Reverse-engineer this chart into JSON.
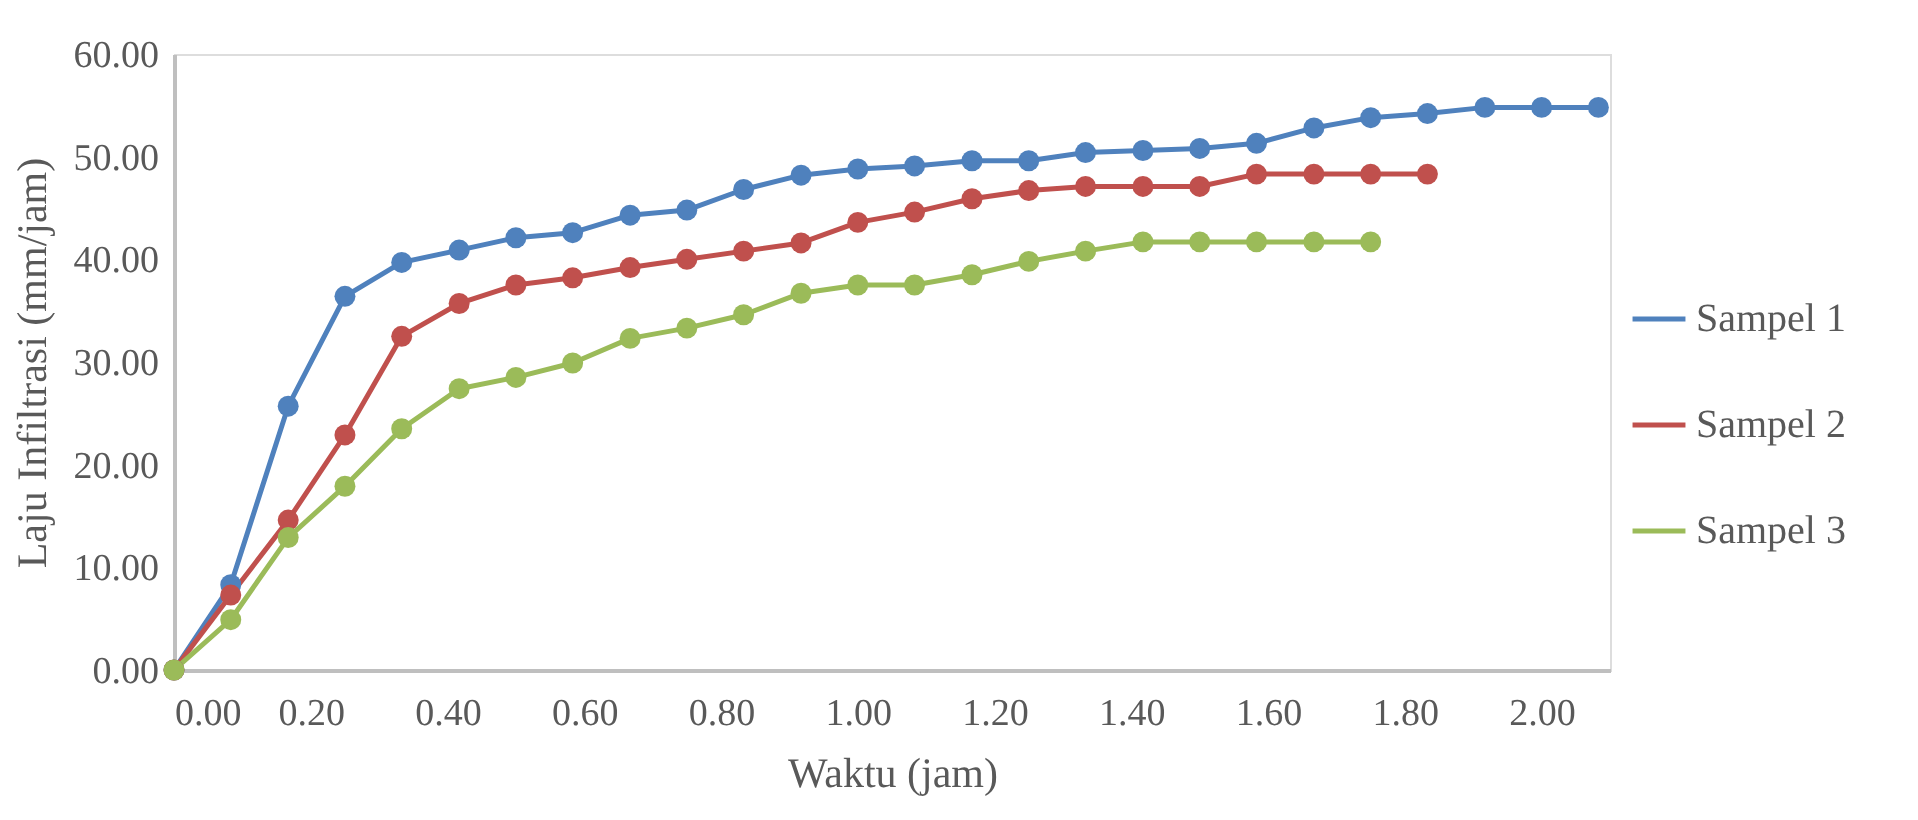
{
  "chart_data": {
    "type": "line",
    "xlabel": "Waktu (jam)",
    "ylabel": "Laju Infiltrasi (mm/jam)",
    "x": [
      0,
      0.083,
      0.167,
      0.25,
      0.333,
      0.417,
      0.5,
      0.583,
      0.667,
      0.75,
      0.833,
      0.917,
      1.0,
      1.083,
      1.167,
      1.25,
      1.333,
      1.417,
      1.5,
      1.583,
      1.667,
      1.75,
      1.833,
      1.917,
      2.0,
      2.083
    ],
    "series": [
      {
        "name": "Sampel 1",
        "color": "#4f81bd",
        "values": [
          0,
          8.3,
          25.7,
          36.4,
          39.7,
          40.9,
          42.1,
          42.6,
          44.3,
          44.8,
          46.8,
          48.2,
          48.8,
          49.1,
          49.6,
          49.6,
          50.4,
          50.6,
          50.8,
          51.3,
          52.8,
          53.8,
          54.2,
          54.8,
          54.8,
          54.8
        ]
      },
      {
        "name": "Sampel 2",
        "color": "#c0504d",
        "values": [
          0,
          7.3,
          14.6,
          22.9,
          32.5,
          35.7,
          37.5,
          38.2,
          39.2,
          40.0,
          40.8,
          41.6,
          43.6,
          44.6,
          45.9,
          46.7,
          47.1,
          47.1,
          47.1,
          48.3,
          48.3,
          48.3,
          48.3,
          null,
          null,
          null
        ]
      },
      {
        "name": "Sampel 3",
        "color": "#9bbb59",
        "values": [
          0,
          4.9,
          12.9,
          17.9,
          23.5,
          27.4,
          28.5,
          29.9,
          32.3,
          33.3,
          34.6,
          36.7,
          37.5,
          37.5,
          38.5,
          39.8,
          40.8,
          41.7,
          41.7,
          41.7,
          41.7,
          41.7,
          null,
          null,
          null,
          null
        ]
      }
    ],
    "xlim": [
      0,
      2.1
    ],
    "xticks": [
      {
        "value": 0,
        "label": "0.00"
      },
      {
        "value": 0.2,
        "label": "0.20"
      },
      {
        "value": 0.4,
        "label": "0.40"
      },
      {
        "value": 0.6,
        "label": "0.60"
      },
      {
        "value": 0.8,
        "label": "0.80"
      },
      {
        "value": 1.0,
        "label": "1.00"
      },
      {
        "value": 1.2,
        "label": "1.20"
      },
      {
        "value": 1.4,
        "label": "1.40"
      },
      {
        "value": 1.6,
        "label": "1.60"
      },
      {
        "value": 1.8,
        "label": "1.80"
      },
      {
        "value": 2.0,
        "label": "2.00"
      }
    ],
    "ylim": [
      0,
      60
    ],
    "yticks": [
      {
        "value": 0,
        "label": "0.00"
      },
      {
        "value": 10,
        "label": "10.00"
      },
      {
        "value": 20,
        "label": "20.00"
      },
      {
        "value": 30,
        "label": "30.00"
      },
      {
        "value": 40,
        "label": "40.00"
      },
      {
        "value": 50,
        "label": "50.00"
      },
      {
        "value": 60,
        "label": "60.00"
      }
    ],
    "grid": false,
    "legend": "right",
    "marker": "circle",
    "line_style": "solid"
  }
}
